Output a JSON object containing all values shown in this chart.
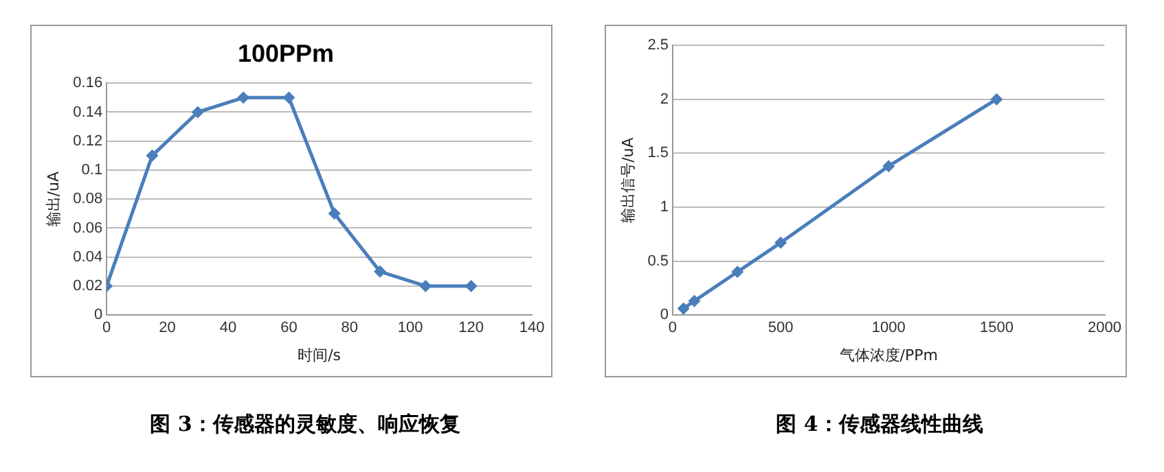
{
  "chart_data": [
    {
      "type": "line",
      "title": "100PPm",
      "xlabel": "时间/s",
      "ylabel": "输出/uA",
      "x": [
        0,
        15,
        30,
        45,
        60,
        75,
        90,
        105,
        120
      ],
      "series": [
        {
          "color": "#4a7ebb",
          "values": [
            0.02,
            0.11,
            0.14,
            0.15,
            0.15,
            0.07,
            0.03,
            0.02,
            0.02
          ]
        }
      ],
      "xlim": [
        0,
        140
      ],
      "xticks": [
        0,
        20,
        40,
        60,
        80,
        100,
        120,
        140
      ],
      "ylim": [
        0,
        0.16
      ],
      "yticks": [
        0,
        0.02,
        0.04,
        0.06,
        0.08,
        0.1,
        0.12,
        0.14,
        0.16
      ],
      "grid": "y",
      "marker": "diamond",
      "line_style": "solid",
      "annotations": [
        "图 3：传感器的灵敏度、响应恢复"
      ]
    },
    {
      "type": "line",
      "xlabel": "气体浓度/PPm",
      "ylabel": "输出信号/uA",
      "x": [
        50,
        100,
        300,
        500,
        1000,
        1500
      ],
      "series": [
        {
          "color": "#4a7ebb",
          "values": [
            0.06,
            0.13,
            0.4,
            0.67,
            1.38,
            2.0
          ]
        }
      ],
      "xlim": [
        0,
        2000
      ],
      "xticks": [
        0,
        500,
        1000,
        1500,
        2000
      ],
      "ylim": [
        0,
        2.5
      ],
      "yticks": [
        0,
        0.5,
        1,
        1.5,
        2,
        2.5
      ],
      "grid": "y",
      "marker": "diamond",
      "line_style": "solid",
      "annotations": [
        "图 4：传感器线性曲线"
      ]
    }
  ]
}
